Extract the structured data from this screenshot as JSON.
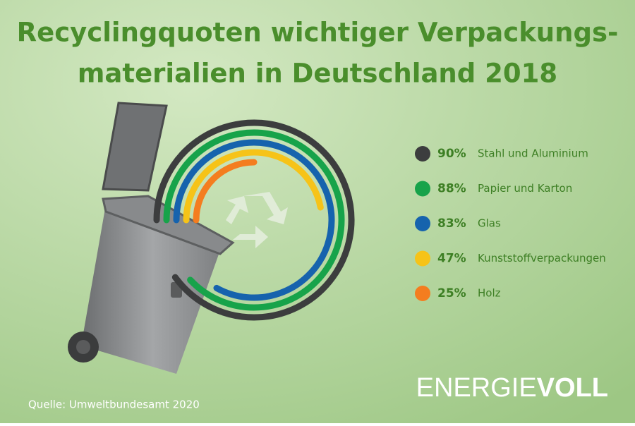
{
  "chart_data": {
    "type": "radial-bar",
    "title": [
      "Recyclingquoten wichtiger Verpackungs-",
      "materialien in Deutschland 2018"
    ],
    "categories": [
      "Stahl und Aluminium",
      "Papier und Karton",
      "Glas",
      "Kunststoffverpackungen",
      "Holz"
    ],
    "values": [
      90,
      88,
      83,
      47,
      25
    ],
    "value_labels": [
      "90%",
      "88%",
      "83%",
      "47%",
      "25%"
    ],
    "colors": [
      "#3c3d3e",
      "#17a34a",
      "#1663ad",
      "#f6c318",
      "#f47d1f"
    ],
    "ylim": [
      0,
      100
    ],
    "source": "Quelle: Umweltbundesamt 2020",
    "brand": [
      "ENERGIE",
      "VOLL"
    ]
  }
}
